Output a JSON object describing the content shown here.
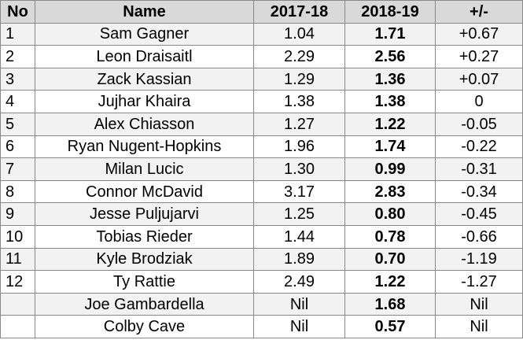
{
  "table": {
    "headers": [
      "No",
      "Name",
      "2017-18",
      "2018-19",
      "+/-"
    ],
    "rows": [
      {
        "no": "1",
        "name": "Sam Gagner",
        "y1": "1.04",
        "y2": "1.71",
        "diff": "+0.67"
      },
      {
        "no": "2",
        "name": "Leon Draisaitl",
        "y1": "2.29",
        "y2": "2.56",
        "diff": "+0.27"
      },
      {
        "no": "3",
        "name": "Zack Kassian",
        "y1": "1.29",
        "y2": "1.36",
        "diff": "+0.07"
      },
      {
        "no": "4",
        "name": "Jujhar Khaira",
        "y1": "1.38",
        "y2": "1.38",
        "diff": "0"
      },
      {
        "no": "5",
        "name": "Alex Chiasson",
        "y1": "1.27",
        "y2": "1.22",
        "diff": "-0.05"
      },
      {
        "no": "6",
        "name": "Ryan Nugent-Hopkins",
        "y1": "1.96",
        "y2": "1.74",
        "diff": "-0.22"
      },
      {
        "no": "7",
        "name": "Milan Lucic",
        "y1": "1.30",
        "y2": "0.99",
        "diff": "-0.31"
      },
      {
        "no": "8",
        "name": "Connor McDavid",
        "y1": "3.17",
        "y2": "2.83",
        "diff": "-0.34"
      },
      {
        "no": "9",
        "name": "Jesse Puljujarvi",
        "y1": "1.25",
        "y2": "0.80",
        "diff": "-0.45"
      },
      {
        "no": "10",
        "name": "Tobias Rieder",
        "y1": "1.44",
        "y2": "0.78",
        "diff": "-0.66"
      },
      {
        "no": "11",
        "name": "Kyle Brodziak",
        "y1": "1.89",
        "y2": "0.70",
        "diff": "-1.19"
      },
      {
        "no": "12",
        "name": "Ty Rattie",
        "y1": "2.49",
        "y2": "1.22",
        "diff": "-1.27"
      },
      {
        "no": "",
        "name": "Joe Gambardella",
        "y1": "Nil",
        "y2": "1.68",
        "diff": "Nil"
      },
      {
        "no": "",
        "name": "Colby Cave",
        "y1": "Nil",
        "y2": "0.57",
        "diff": "Nil"
      }
    ]
  }
}
